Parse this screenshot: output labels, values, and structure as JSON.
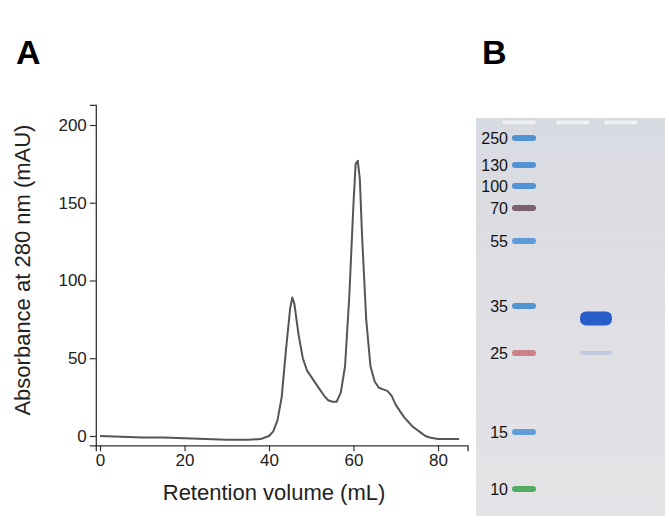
{
  "chart_data": {
    "type": "line",
    "title": "A",
    "x_label": "Retention volume (mL)",
    "y_label": "Absorbance at 280 nm (mAU)",
    "x": [
      0,
      5,
      10,
      15,
      20,
      25,
      30,
      35,
      38,
      40,
      41,
      42,
      43,
      44,
      45,
      45.5,
      46,
      47,
      48,
      49,
      50,
      51,
      52,
      53,
      54,
      55,
      56,
      57,
      58,
      59,
      60,
      60.5,
      61,
      61.5,
      62,
      63,
      64,
      65,
      66,
      67,
      68,
      69,
      70,
      71,
      72,
      73,
      74,
      75,
      76,
      77,
      78,
      80,
      83,
      85
    ],
    "values": [
      0,
      -0.5,
      -1,
      -1,
      -1.5,
      -2,
      -2.5,
      -2.5,
      -2,
      0,
      3,
      10,
      25,
      55,
      82,
      89,
      85,
      65,
      50,
      42,
      38,
      34,
      30,
      26,
      23,
      22,
      22,
      28,
      45,
      90,
      150,
      175,
      177,
      165,
      130,
      75,
      45,
      35,
      31,
      30,
      29,
      26,
      20,
      16,
      12,
      9,
      6,
      4,
      2,
      0,
      -1,
      -2,
      -2,
      -2
    ],
    "color": "#555555",
    "xlim": [
      -1,
      87
    ],
    "ylim": [
      -6,
      213
    ],
    "xticks": [
      0,
      20,
      40,
      60,
      80
    ],
    "yticks": [
      0,
      50,
      100,
      150,
      200
    ],
    "grid": false
  },
  "gel": {
    "panel_label": "B",
    "ladder": {
      "labels": [
        250,
        130,
        100,
        70,
        55,
        35,
        25,
        15,
        10
      ],
      "colors": [
        "#3a86d0",
        "#3a86d0",
        "#3a86d0",
        "#6b4a5e",
        "#4a90d8",
        "#3a86d0",
        "#c9707a",
        "#4a90d8",
        "#3aa14a"
      ]
    },
    "sample_bands": [
      32,
      25
    ]
  }
}
